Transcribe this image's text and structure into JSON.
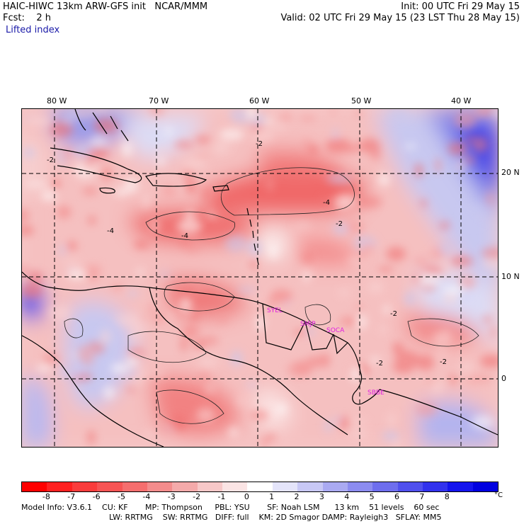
{
  "header": {
    "model_line": "HAIC-HIWC 13km ARW-GFS init   NCAR/MMM",
    "forecast_line": "Fcst:    2 h",
    "field_name": "Lifted index",
    "init_line": "Init: 00 UTC Fri 29 May 15",
    "valid_line": "Valid: 02 UTC Fri 29 May 15 (23 LST Thu 28 May 15)"
  },
  "map": {
    "lon_labels": [
      "80 W",
      "70 W",
      "60 W",
      "50 W",
      "40 W"
    ],
    "lat_labels": [
      "20 N",
      "10 N",
      "0"
    ],
    "contour_labels": [
      "-2",
      "-2",
      "-4",
      "-4",
      "-4",
      "-2",
      "-2",
      "-2",
      "-2"
    ],
    "station_labels": [
      "SYEL",
      "SMJP",
      "SOCA",
      "SBBE"
    ],
    "station_color": "#e020e0"
  },
  "colorbar": {
    "ticks": [
      "-8",
      "-7",
      "-6",
      "-5",
      "-4",
      "-3",
      "-2",
      "-1",
      "0",
      "1",
      "2",
      "3",
      "4",
      "5",
      "6",
      "7",
      "8"
    ],
    "unit": "°C",
    "colors": [
      "#ff0000",
      "#ff2020",
      "#fa3c3c",
      "#f75454",
      "#f56e6e",
      "#f38c8c",
      "#f4aaaa",
      "#f7c8c8",
      "#fbe4e4",
      "#ffffff",
      "#e4e4fa",
      "#c8c8f5",
      "#aaaaf2",
      "#8c8cf0",
      "#6e6eee",
      "#5050ee",
      "#3232ee",
      "#1414ee",
      "#0000e0"
    ]
  },
  "footer": {
    "line1": "Model Info: V3.6.1    CU: KF       MP: Thompson     PBL: YSU       SF: Noah LSM      13 km    51 levels    60 sec",
    "line2": "LW: RRTMG    SW: RRTMG   DIFF: full    KM: 2D Smagor DAMP: Rayleigh3   SFLAY: MM5"
  }
}
